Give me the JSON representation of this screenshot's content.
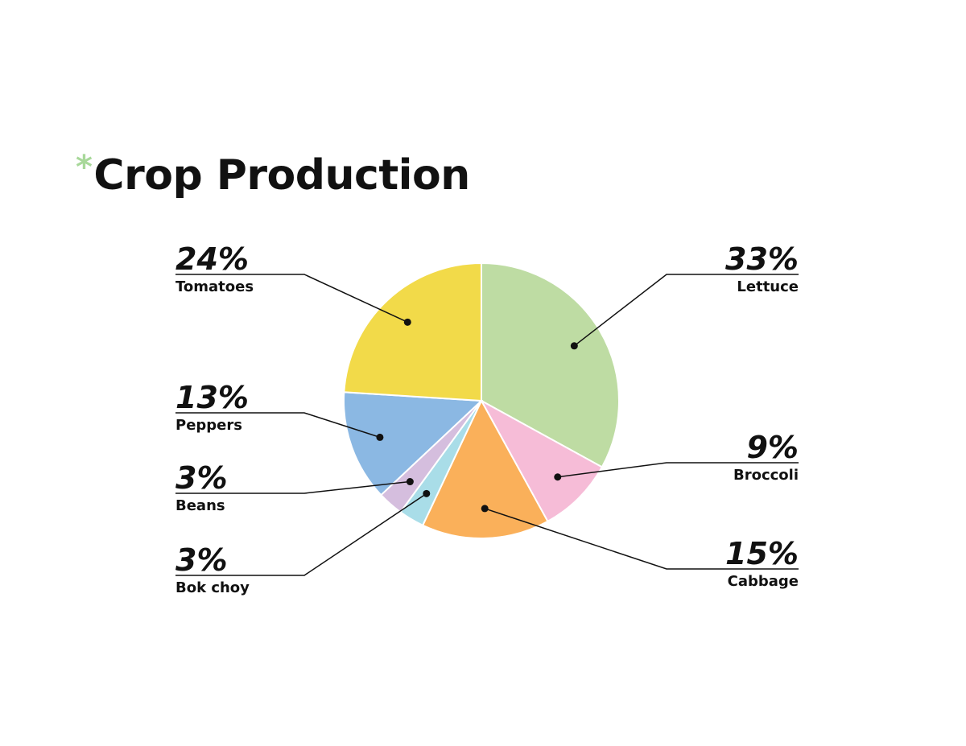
{
  "title": "Crop Production",
  "title_marker": "*",
  "colors": {
    "title_marker": "#a8d89a",
    "leader_line": "#111111",
    "slice_border": "#ffffff"
  },
  "chart_data": {
    "type": "pie",
    "title": "Crop Production",
    "slices": [
      {
        "label": "Lettuce",
        "percent_label": "33%",
        "value": 33,
        "color": "#bedca3"
      },
      {
        "label": "Broccoli",
        "percent_label": "9%",
        "value": 9,
        "color": "#f6bcd7"
      },
      {
        "label": "Cabbage",
        "percent_label": "15%",
        "value": 15,
        "color": "#fab05a"
      },
      {
        "label": "Bok choy",
        "percent_label": "3%",
        "value": 3,
        "color": "#a9dde8"
      },
      {
        "label": "Beans",
        "percent_label": "3%",
        "value": 3,
        "color": "#d5bede"
      },
      {
        "label": "Peppers",
        "percent_label": "13%",
        "value": 13,
        "color": "#8bb8e3"
      },
      {
        "label": "Tomatoes",
        "percent_label": "24%",
        "value": 24,
        "color": "#f2da49"
      }
    ]
  }
}
